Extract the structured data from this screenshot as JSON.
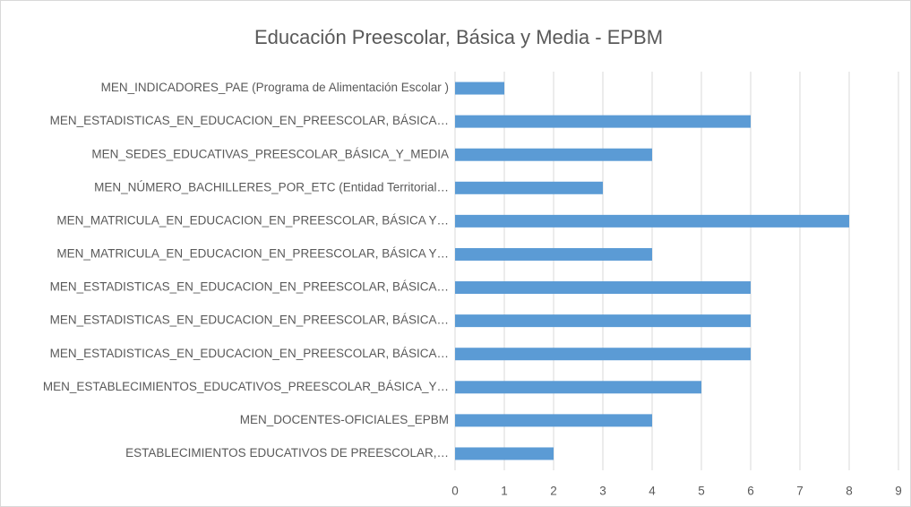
{
  "chart_data": {
    "type": "bar",
    "orientation": "horizontal",
    "title": "Educación Preescolar, Básica y Media - EPBM",
    "categories": [
      "MEN_INDICADORES_PAE (Programa de Alimentación Escolar )",
      "MEN_ESTADISTICAS_EN_EDUCACION_EN_PREESCOLAR, BÁSICA…",
      "MEN_SEDES_EDUCATIVAS_PREESCOLAR_BÁSICA_Y_MEDIA",
      "MEN_NÚMERO_BACHILLERES_POR_ETC (Entidad Territorial…",
      "MEN_MATRICULA_EN_EDUCACION_EN_PREESCOLAR, BÁSICA Y…",
      "MEN_MATRICULA_EN_EDUCACION_EN_PREESCOLAR, BÁSICA Y…",
      "MEN_ESTADISTICAS_EN_EDUCACION_EN_PREESCOLAR, BÁSICA…",
      "MEN_ESTADISTICAS_EN_EDUCACION_EN_PREESCOLAR, BÁSICA…",
      "MEN_ESTADISTICAS_EN_EDUCACION_EN_PREESCOLAR, BÁSICA…",
      "MEN_ESTABLECIMIENTOS_EDUCATIVOS_PREESCOLAR_BÁSICA_Y…",
      "MEN_DOCENTES-OFICIALES_EPBM",
      "ESTABLECIMIENTOS EDUCATIVOS DE PREESCOLAR,…"
    ],
    "values": [
      1,
      6,
      4,
      3,
      8,
      4,
      6,
      6,
      6,
      5,
      4,
      2
    ],
    "color": "#5b9bd5",
    "xlim": [
      0,
      9
    ],
    "xticks": [
      0,
      1,
      2,
      3,
      4,
      5,
      6,
      7,
      8,
      9
    ],
    "grid": true
  }
}
